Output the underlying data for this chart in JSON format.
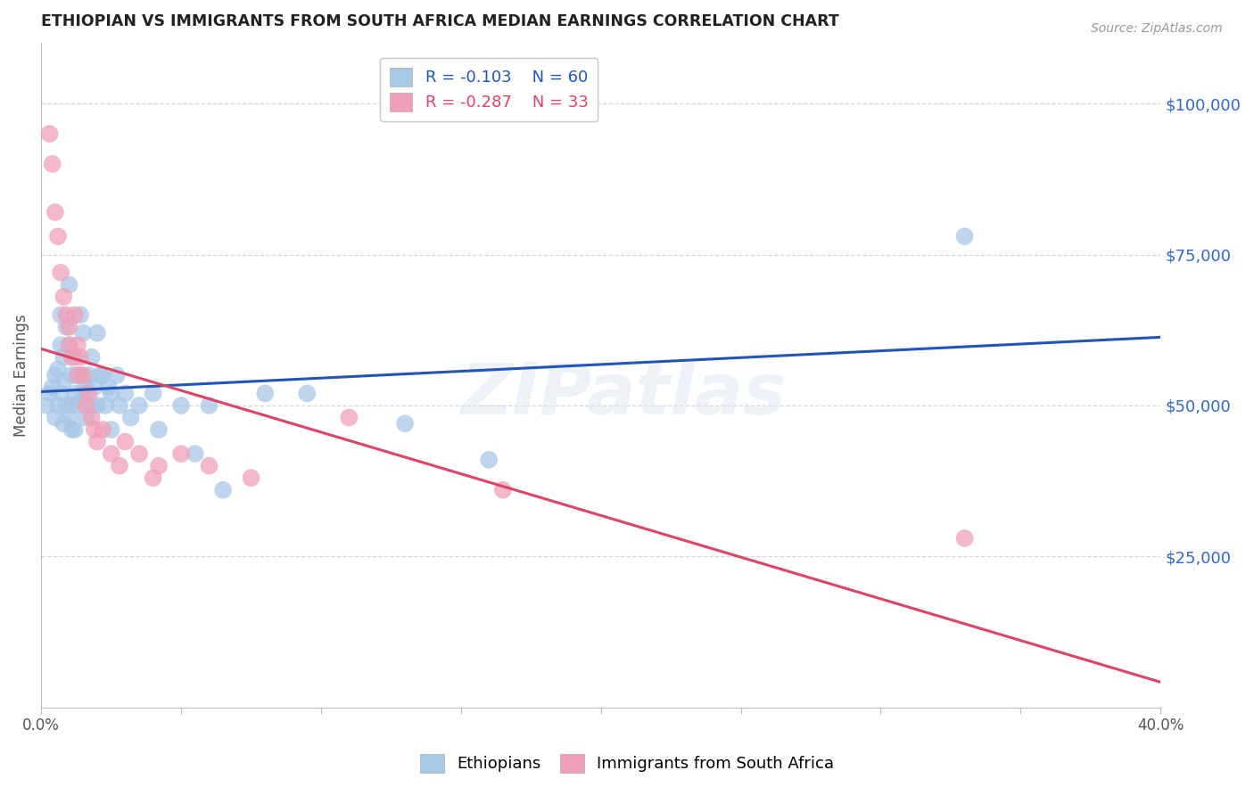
{
  "title": "ETHIOPIAN VS IMMIGRANTS FROM SOUTH AFRICA MEDIAN EARNINGS CORRELATION CHART",
  "source": "Source: ZipAtlas.com",
  "ylabel": "Median Earnings",
  "y_ticks": [
    25000,
    50000,
    75000,
    100000
  ],
  "y_tick_labels": [
    "$25,000",
    "$50,000",
    "$75,000",
    "$100,000"
  ],
  "x_min": 0.0,
  "x_max": 0.4,
  "y_min": 0,
  "y_max": 110000,
  "watermark": "ZIPatlas",
  "legend_blue_r": "-0.103",
  "legend_blue_n": "60",
  "legend_pink_r": "-0.287",
  "legend_pink_n": "33",
  "blue_color": "#A8C8E8",
  "pink_color": "#F0A0B8",
  "blue_line_color": "#2255BB",
  "pink_line_color": "#DD4466",
  "title_color": "#222222",
  "right_label_color": "#3366CC",
  "axis_label_color": "#555555",
  "background_color": "#FFFFFF",
  "ethiopians_x": [
    0.002,
    0.003,
    0.004,
    0.005,
    0.005,
    0.006,
    0.006,
    0.007,
    0.007,
    0.007,
    0.008,
    0.008,
    0.008,
    0.009,
    0.009,
    0.01,
    0.01,
    0.01,
    0.011,
    0.011,
    0.011,
    0.012,
    0.012,
    0.012,
    0.013,
    0.013,
    0.014,
    0.014,
    0.015,
    0.015,
    0.016,
    0.016,
    0.017,
    0.018,
    0.018,
    0.019,
    0.02,
    0.02,
    0.021,
    0.022,
    0.023,
    0.024,
    0.025,
    0.025,
    0.027,
    0.028,
    0.03,
    0.032,
    0.035,
    0.04,
    0.042,
    0.05,
    0.055,
    0.06,
    0.065,
    0.08,
    0.095,
    0.13,
    0.16,
    0.33
  ],
  "ethiopians_y": [
    50000,
    52000,
    53000,
    55000,
    48000,
    56000,
    50000,
    65000,
    60000,
    52000,
    58000,
    54000,
    47000,
    63000,
    50000,
    70000,
    60000,
    48000,
    55000,
    50000,
    46000,
    58000,
    52000,
    46000,
    55000,
    50000,
    65000,
    55000,
    62000,
    52000,
    53000,
    48000,
    55000,
    58000,
    50000,
    53000,
    62000,
    50000,
    55000,
    55000,
    50000,
    53000,
    52000,
    46000,
    55000,
    50000,
    52000,
    48000,
    50000,
    52000,
    46000,
    50000,
    42000,
    50000,
    36000,
    52000,
    52000,
    47000,
    41000,
    78000
  ],
  "sa_x": [
    0.003,
    0.004,
    0.005,
    0.006,
    0.007,
    0.008,
    0.009,
    0.01,
    0.01,
    0.011,
    0.012,
    0.013,
    0.013,
    0.014,
    0.015,
    0.016,
    0.017,
    0.018,
    0.019,
    0.02,
    0.022,
    0.025,
    0.028,
    0.03,
    0.035,
    0.04,
    0.042,
    0.05,
    0.06,
    0.075,
    0.11,
    0.165,
    0.33
  ],
  "sa_y": [
    95000,
    90000,
    82000,
    78000,
    72000,
    68000,
    65000,
    63000,
    60000,
    58000,
    65000,
    60000,
    55000,
    58000,
    55000,
    50000,
    52000,
    48000,
    46000,
    44000,
    46000,
    42000,
    40000,
    44000,
    42000,
    38000,
    40000,
    42000,
    40000,
    38000,
    48000,
    36000,
    28000
  ]
}
